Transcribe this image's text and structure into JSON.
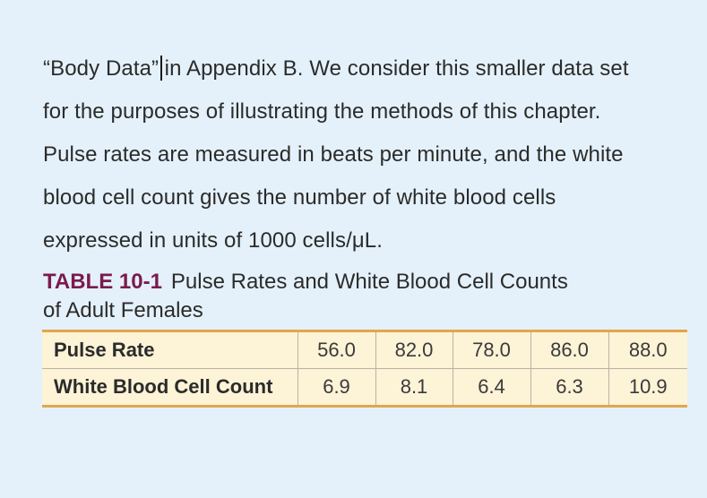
{
  "paragraph": {
    "line1_quote": "“Body Data”",
    "line1_rest": "in Appendix B. We consider this smaller data set",
    "line2": "for the purposes of illustrating the methods of this chapter.",
    "line3": "Pulse rates are measured in beats per minute, and the white",
    "line4": "blood cell count gives the number of white blood cells",
    "line5": "expressed in units of 1000 cells/μL."
  },
  "caption": {
    "label": "TABLE 10-1",
    "title_line1": "Pulse Rates and White Blood Cell Counts",
    "title_line2": "of Adult Females",
    "label_color": "#7b1a4d"
  },
  "table": {
    "border_color": "#e2a64a",
    "row_bg": "#fdf3d6",
    "rows": [
      {
        "header": "Pulse Rate",
        "values": [
          "56.0",
          "82.0",
          "78.0",
          "86.0",
          "88.0"
        ]
      },
      {
        "header": "White Blood Cell Count",
        "values": [
          "6.9",
          "8.1",
          "6.4",
          "6.3",
          "10.9"
        ]
      }
    ]
  }
}
